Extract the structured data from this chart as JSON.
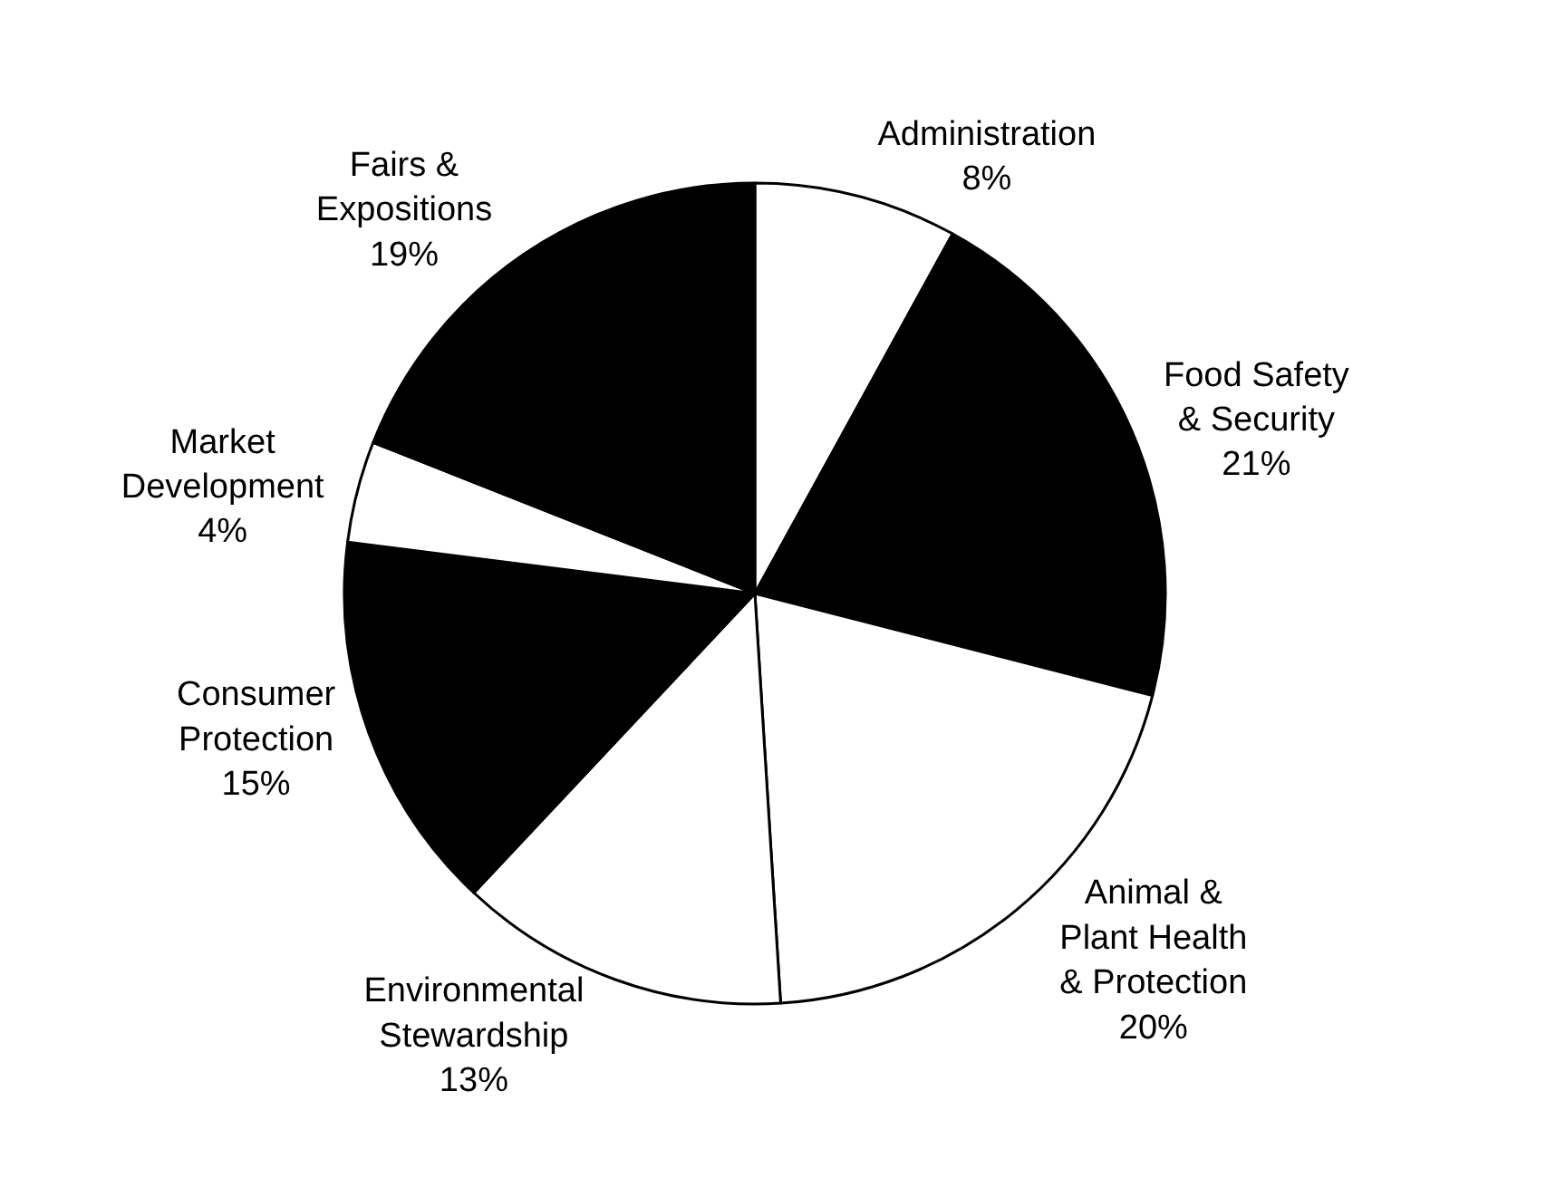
{
  "chart_data": {
    "type": "pie",
    "categories": [
      "Administration",
      "Food Safety & Security",
      "Animal & Plant Health & Protection",
      "Environmental Stewardship",
      "Consumer Protection",
      "Market Development",
      "Fairs & Expositions"
    ],
    "values": [
      8,
      21,
      20,
      13,
      15,
      4,
      19
    ],
    "value_labels": [
      "8%",
      "21%",
      "20%",
      "13%",
      "15%",
      "4%",
      "19%"
    ],
    "colors": [
      "#ffffff",
      "#000000",
      "#ffffff",
      "#ffffff",
      "#000000",
      "#ffffff",
      "#000000"
    ],
    "legend": false
  }
}
